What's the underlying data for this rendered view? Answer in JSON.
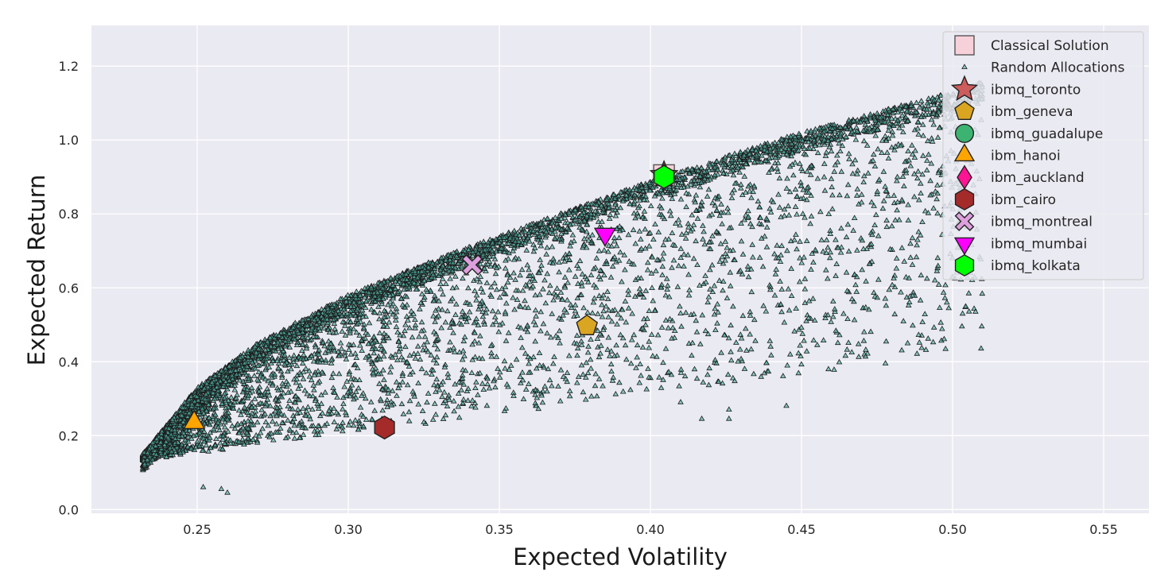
{
  "chart_data": {
    "type": "scatter",
    "xlabel": "Expected Volatility",
    "ylabel": "Expected Return",
    "xlim": [
      0.215,
      0.565
    ],
    "ylim": [
      -0.01,
      1.31
    ],
    "x_ticks": [
      "0.25",
      "0.30",
      "0.35",
      "0.40",
      "0.45",
      "0.50",
      "0.55"
    ],
    "y_ticks": [
      "0.0",
      "0.2",
      "0.4",
      "0.6",
      "0.8",
      "1.0",
      "1.2"
    ],
    "grid": true,
    "legend_position": "top-right",
    "background": "#eaeaf2",
    "random_allocations": {
      "name": "Random Allocations",
      "marker": "triangle",
      "color": "#4fb0a5",
      "min_volatility": 0.232,
      "max_volatility": 0.51,
      "min_return": 0.045,
      "max_return": 1.16,
      "frontier": [
        [
          0.232,
          0.15
        ],
        [
          0.25,
          0.33
        ],
        [
          0.27,
          0.45
        ],
        [
          0.3,
          0.58
        ],
        [
          0.33,
          0.68
        ],
        [
          0.36,
          0.77
        ],
        [
          0.4,
          0.89
        ],
        [
          0.45,
          1.02
        ],
        [
          0.5,
          1.13
        ],
        [
          0.51,
          1.16
        ]
      ],
      "sparse_points": [
        [
          0.445,
          0.28
        ],
        [
          0.429,
          0.4
        ],
        [
          0.426,
          0.27
        ],
        [
          0.426,
          0.245
        ],
        [
          0.417,
          0.245
        ],
        [
          0.41,
          0.29
        ],
        [
          0.26,
          0.045
        ],
        [
          0.258,
          0.055
        ],
        [
          0.252,
          0.06
        ],
        [
          0.41,
          0.53
        ],
        [
          0.419,
          0.56
        ]
      ]
    },
    "series": [
      {
        "name": "Classical Solution",
        "x": 0.4045,
        "y": 0.905,
        "marker": "square",
        "color": "#f8ccd6"
      },
      {
        "name": "ibmq_toronto",
        "x": 0.4045,
        "y": 0.905,
        "marker": "star",
        "color": "#cd5c5c"
      },
      {
        "name": "ibm_geneva",
        "x": 0.379,
        "y": 0.497,
        "marker": "pentagon",
        "color": "#daa520"
      },
      {
        "name": "ibmq_guadalupe",
        "x": 0.4045,
        "y": 0.9,
        "marker": "circle",
        "color": "#3cb371"
      },
      {
        "name": "ibm_hanoi",
        "x": 0.249,
        "y": 0.235,
        "marker": "triangle-up",
        "color": "#ffa500"
      },
      {
        "name": "ibm_auckland",
        "x": 0.4045,
        "y": 0.9,
        "marker": "diamond",
        "color": "#ff1493"
      },
      {
        "name": "ibm_cairo",
        "x": 0.312,
        "y": 0.222,
        "marker": "hexagon",
        "color": "#a52a2a"
      },
      {
        "name": "ibmq_montreal",
        "x": 0.341,
        "y": 0.662,
        "marker": "x",
        "color": "#dda0dd"
      },
      {
        "name": "ibmq_mumbai",
        "x": 0.385,
        "y": 0.745,
        "marker": "triangle-down",
        "color": "#ff00ff"
      },
      {
        "name": "ibmq_kolkata",
        "x": 0.4045,
        "y": 0.9,
        "marker": "hexagon",
        "color": "#00ff00"
      }
    ]
  }
}
